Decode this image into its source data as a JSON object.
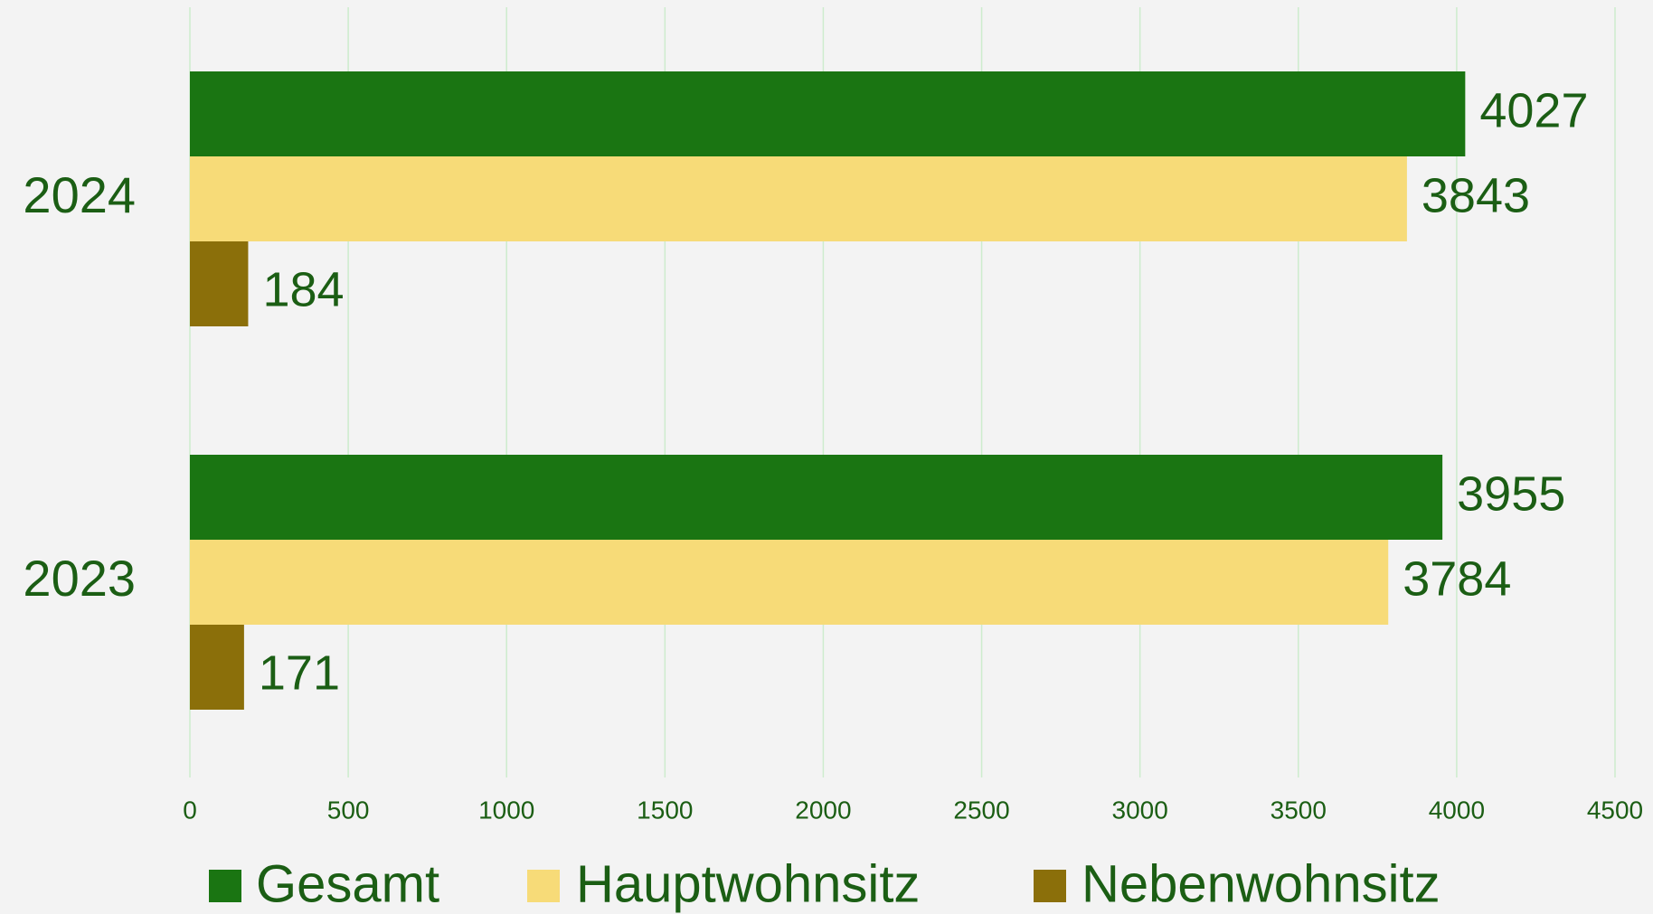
{
  "chart_data": {
    "type": "barh",
    "categories": [
      "2024",
      "2023"
    ],
    "series": [
      {
        "name": "Gesamt",
        "color": "#1a7512",
        "values": [
          4027,
          3955
        ]
      },
      {
        "name": "Hauptwohnsitz",
        "color": "#f7db78",
        "values": [
          3843,
          3784
        ]
      },
      {
        "name": "Nebenwohnsitz",
        "color": "#8b6f0a",
        "values": [
          184,
          171
        ]
      }
    ],
    "xlim": [
      0,
      4500
    ],
    "xticks": [
      0,
      500,
      1000,
      1500,
      2000,
      2500,
      3000,
      3500,
      4000,
      4500
    ],
    "grid": true,
    "grid_color": "#cdeccd",
    "legend": "bottom"
  }
}
